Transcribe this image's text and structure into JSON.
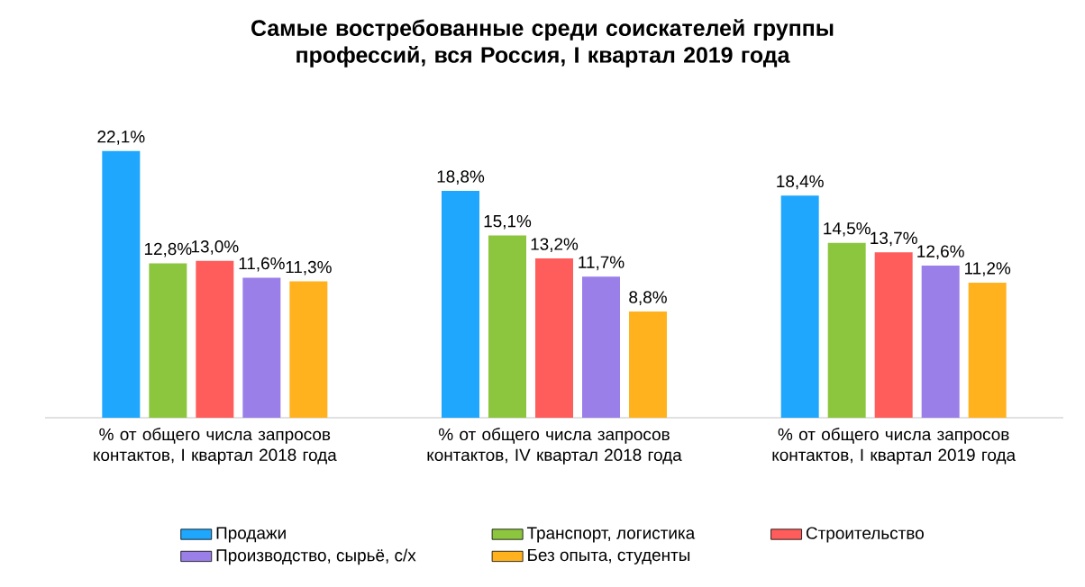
{
  "chart_data": {
    "type": "bar",
    "title": "Самые востребованные среди соискателей группы профессий, вся Россия, I квартал 2019 года",
    "categories": [
      "% от общего числа запросов контактов, I квартал 2018 года",
      "% от общего числа запросов контактов, IV квартал 2018 года",
      "% от общего числа запросов контактов, I квартал 2019 года"
    ],
    "series": [
      {
        "name": "Продажи",
        "color": "#1ea7fd",
        "values": [
          22.1,
          18.8,
          18.4
        ],
        "value_labels": [
          "22,1%",
          "18,8%",
          "18,4%"
        ]
      },
      {
        "name": "Транспорт, логистика",
        "color": "#8cc63f",
        "values": [
          12.8,
          15.1,
          14.5
        ],
        "value_labels": [
          "12,8%",
          "15,1%",
          "14,5%"
        ]
      },
      {
        "name": "Строительство",
        "color": "#ff5c5c",
        "values": [
          13.0,
          13.2,
          13.7
        ],
        "value_labels": [
          "13,0%",
          "13,2%",
          "13,7%"
        ]
      },
      {
        "name": "Производство, сырьё, с/х",
        "color": "#9a7fe8",
        "values": [
          11.6,
          11.7,
          12.6
        ],
        "value_labels": [
          "11,6%",
          "11,7%",
          "12,6%"
        ]
      },
      {
        "name": "Без опыта, студенты",
        "color": "#ffb21e",
        "values": [
          11.3,
          8.8,
          11.2
        ],
        "value_labels": [
          "11,3%",
          "8,8%",
          "11,2%"
        ]
      }
    ],
    "tick_labels": "x",
    "grid": false,
    "legend": "bottom"
  }
}
